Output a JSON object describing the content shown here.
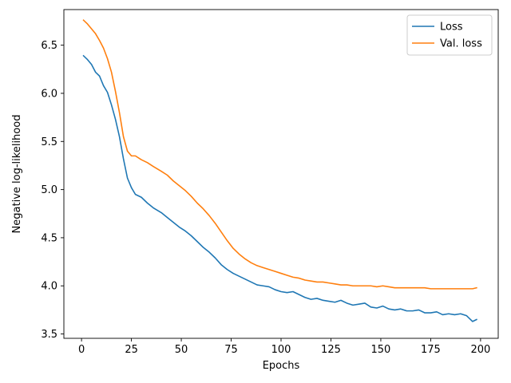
{
  "chart_data": {
    "type": "line",
    "xlabel": "Epochs",
    "ylabel": "Negative log-likelihood",
    "xlim": [
      -8.85,
      208.85
    ],
    "ylim": [
      3.455,
      6.87
    ],
    "xticks": [
      0,
      25,
      50,
      75,
      100,
      125,
      150,
      175,
      200
    ],
    "yticks": [
      3.5,
      4.0,
      4.5,
      5.0,
      5.5,
      6.0,
      6.5
    ],
    "grid": false,
    "legend_position": "top-right",
    "series": [
      {
        "name": "Loss",
        "color": "#1f77b4",
        "points": [
          [
            1,
            6.39
          ],
          [
            3,
            6.35
          ],
          [
            5,
            6.3
          ],
          [
            7,
            6.22
          ],
          [
            9,
            6.18
          ],
          [
            11,
            6.08
          ],
          [
            13,
            6.01
          ],
          [
            15,
            5.88
          ],
          [
            17,
            5.73
          ],
          [
            19,
            5.55
          ],
          [
            21,
            5.32
          ],
          [
            23,
            5.12
          ],
          [
            25,
            5.02
          ],
          [
            27,
            4.95
          ],
          [
            30,
            4.92
          ],
          [
            33,
            4.86
          ],
          [
            36,
            4.81
          ],
          [
            40,
            4.76
          ],
          [
            43,
            4.71
          ],
          [
            46,
            4.66
          ],
          [
            49,
            4.61
          ],
          [
            52,
            4.57
          ],
          [
            55,
            4.52
          ],
          [
            58,
            4.46
          ],
          [
            61,
            4.4
          ],
          [
            64,
            4.35
          ],
          [
            67,
            4.29
          ],
          [
            70,
            4.22
          ],
          [
            73,
            4.17
          ],
          [
            76,
            4.13
          ],
          [
            79,
            4.1
          ],
          [
            82,
            4.07
          ],
          [
            85,
            4.04
          ],
          [
            88,
            4.01
          ],
          [
            91,
            4.0
          ],
          [
            94,
            3.99
          ],
          [
            97,
            3.96
          ],
          [
            100,
            3.94
          ],
          [
            103,
            3.93
          ],
          [
            106,
            3.94
          ],
          [
            109,
            3.91
          ],
          [
            112,
            3.88
          ],
          [
            115,
            3.86
          ],
          [
            118,
            3.87
          ],
          [
            121,
            3.85
          ],
          [
            124,
            3.84
          ],
          [
            127,
            3.83
          ],
          [
            130,
            3.85
          ],
          [
            133,
            3.82
          ],
          [
            136,
            3.8
          ],
          [
            139,
            3.81
          ],
          [
            142,
            3.82
          ],
          [
            145,
            3.78
          ],
          [
            148,
            3.77
          ],
          [
            151,
            3.79
          ],
          [
            154,
            3.76
          ],
          [
            157,
            3.75
          ],
          [
            160,
            3.76
          ],
          [
            163,
            3.74
          ],
          [
            166,
            3.74
          ],
          [
            169,
            3.75
          ],
          [
            172,
            3.72
          ],
          [
            175,
            3.72
          ],
          [
            178,
            3.73
          ],
          [
            181,
            3.7
          ],
          [
            184,
            3.71
          ],
          [
            187,
            3.7
          ],
          [
            190,
            3.71
          ],
          [
            193,
            3.69
          ],
          [
            196,
            3.63
          ],
          [
            198,
            3.65
          ]
        ]
      },
      {
        "name": "Val. loss",
        "color": "#ff7f0e",
        "points": [
          [
            1,
            6.76
          ],
          [
            3,
            6.72
          ],
          [
            5,
            6.67
          ],
          [
            7,
            6.62
          ],
          [
            9,
            6.55
          ],
          [
            11,
            6.47
          ],
          [
            13,
            6.36
          ],
          [
            15,
            6.22
          ],
          [
            17,
            6.02
          ],
          [
            19,
            5.8
          ],
          [
            21,
            5.55
          ],
          [
            23,
            5.4
          ],
          [
            25,
            5.35
          ],
          [
            27,
            5.35
          ],
          [
            30,
            5.31
          ],
          [
            33,
            5.28
          ],
          [
            36,
            5.24
          ],
          [
            40,
            5.19
          ],
          [
            43,
            5.15
          ],
          [
            46,
            5.09
          ],
          [
            49,
            5.04
          ],
          [
            52,
            4.99
          ],
          [
            55,
            4.93
          ],
          [
            58,
            4.86
          ],
          [
            61,
            4.8
          ],
          [
            64,
            4.73
          ],
          [
            67,
            4.65
          ],
          [
            70,
            4.56
          ],
          [
            73,
            4.47
          ],
          [
            76,
            4.39
          ],
          [
            79,
            4.33
          ],
          [
            82,
            4.28
          ],
          [
            85,
            4.24
          ],
          [
            88,
            4.21
          ],
          [
            91,
            4.19
          ],
          [
            94,
            4.17
          ],
          [
            97,
            4.15
          ],
          [
            100,
            4.13
          ],
          [
            103,
            4.11
          ],
          [
            106,
            4.09
          ],
          [
            109,
            4.08
          ],
          [
            112,
            4.06
          ],
          [
            115,
            4.05
          ],
          [
            118,
            4.04
          ],
          [
            121,
            4.04
          ],
          [
            124,
            4.03
          ],
          [
            127,
            4.02
          ],
          [
            130,
            4.01
          ],
          [
            133,
            4.01
          ],
          [
            136,
            4.0
          ],
          [
            139,
            4.0
          ],
          [
            142,
            4.0
          ],
          [
            145,
            4.0
          ],
          [
            148,
            3.99
          ],
          [
            151,
            4.0
          ],
          [
            154,
            3.99
          ],
          [
            157,
            3.98
          ],
          [
            160,
            3.98
          ],
          [
            163,
            3.98
          ],
          [
            166,
            3.98
          ],
          [
            169,
            3.98
          ],
          [
            172,
            3.98
          ],
          [
            175,
            3.97
          ],
          [
            178,
            3.97
          ],
          [
            181,
            3.97
          ],
          [
            184,
            3.97
          ],
          [
            187,
            3.97
          ],
          [
            190,
            3.97
          ],
          [
            193,
            3.97
          ],
          [
            196,
            3.97
          ],
          [
            198,
            3.98
          ]
        ]
      }
    ]
  }
}
